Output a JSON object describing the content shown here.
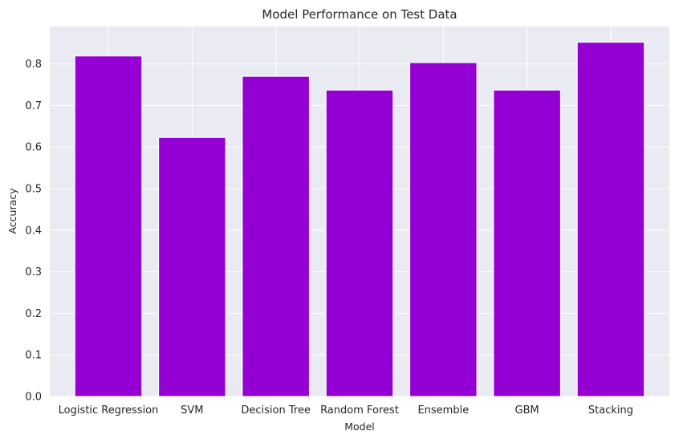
{
  "chart_data": {
    "type": "bar",
    "title": "Model Performance on Test Data",
    "xlabel": "Model",
    "ylabel": "Accuracy",
    "categories": [
      "Logistic Regression",
      "SVM",
      "Decision Tree",
      "Random Forest",
      "Ensemble",
      "GBM",
      "Stacking"
    ],
    "values": [
      0.819,
      0.623,
      0.77,
      0.737,
      0.803,
      0.737,
      0.852
    ],
    "ylim": [
      0,
      0.89
    ],
    "yticks": [
      "0.0",
      "0.1",
      "0.2",
      "0.3",
      "0.4",
      "0.5",
      "0.6",
      "0.7",
      "0.8"
    ],
    "grid": true,
    "colors": {
      "bar": "#9400D3",
      "plot_background": "#EAEAF2",
      "grid": "#FFFFFF",
      "text": "#262626"
    }
  }
}
